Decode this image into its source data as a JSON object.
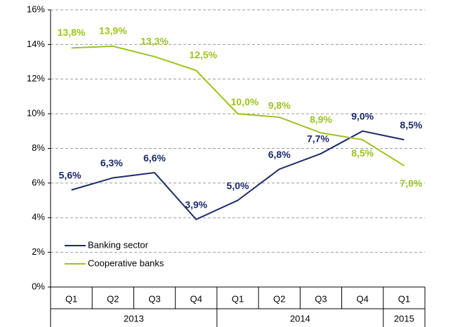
{
  "chart_data": {
    "type": "line",
    "groups": [
      {
        "name": "2013",
        "categories": [
          "Q1",
          "Q2",
          "Q3",
          "Q4"
        ]
      },
      {
        "name": "2014",
        "categories": [
          "Q1",
          "Q2",
          "Q3",
          "Q4"
        ]
      },
      {
        "name": "2015",
        "categories": [
          "Q1"
        ]
      }
    ],
    "series": [
      {
        "name": "Banking sector",
        "color": "#1b2a6b",
        "values": [
          5.6,
          6.3,
          6.6,
          3.9,
          5.0,
          6.8,
          7.7,
          9.0,
          8.5
        ],
        "value_labels": [
          "5,6%",
          "6,3%",
          "6,6%",
          "3,9%",
          "5,0%",
          "6,8%",
          "7,7%",
          "9,0%",
          "8,5%"
        ]
      },
      {
        "name": "Cooperative banks",
        "color": "#9cc31e",
        "values": [
          13.8,
          13.9,
          13.3,
          12.5,
          10.0,
          9.8,
          8.9,
          8.5,
          7.0
        ],
        "value_labels": [
          "13,8%",
          "13,9%",
          "13,3%",
          "12,5%",
          "10,0%",
          "9,8%",
          "8,9%",
          "8,5%",
          "7,0%"
        ]
      }
    ],
    "ylim": [
      0,
      16
    ],
    "yticks": [
      {
        "value": 0,
        "label": "0%"
      },
      {
        "value": 2,
        "label": "2%"
      },
      {
        "value": 4,
        "label": "4%"
      },
      {
        "value": 6,
        "label": "6%"
      },
      {
        "value": 8,
        "label": "8%"
      },
      {
        "value": 10,
        "label": "10%"
      },
      {
        "value": 12,
        "label": "12%"
      },
      {
        "value": 14,
        "label": "14%"
      },
      {
        "value": 16,
        "label": "16%"
      }
    ],
    "grid": true,
    "legend": "lower left"
  }
}
